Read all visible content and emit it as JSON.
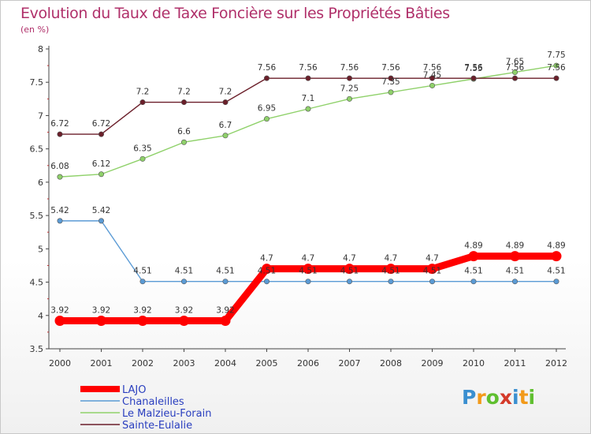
{
  "chart_data": {
    "type": "line",
    "title": "Evolution du Taux de Taxe Foncière sur les Propriétés Bâties",
    "unit_label": "(en %)",
    "x": [
      "2000",
      "2001",
      "2002",
      "2003",
      "2004",
      "2005",
      "2006",
      "2007",
      "2008",
      "2009",
      "2010",
      "2011",
      "2012"
    ],
    "ylim": [
      3.5,
      8
    ],
    "yticks": [
      "3.5",
      "4",
      "4.5",
      "5",
      "5.5",
      "6",
      "6.5",
      "7",
      "7.5",
      "8"
    ],
    "series": [
      {
        "name": "LAJO",
        "color": "#ff0000",
        "values": [
          3.92,
          3.92,
          3.92,
          3.92,
          3.92,
          4.7,
          4.7,
          4.7,
          4.7,
          4.7,
          4.89,
          4.89,
          4.89
        ],
        "labels": [
          "3.92",
          "3.92",
          "3.92",
          "3.92",
          "3.92",
          "4.7",
          "4.7",
          "4.7",
          "4.7",
          "4.7",
          "4.89",
          "4.89",
          "4.89"
        ]
      },
      {
        "name": "Chanaleilles",
        "color": "#5b9bd5",
        "values": [
          5.42,
          5.42,
          4.51,
          4.51,
          4.51,
          4.51,
          4.51,
          4.51,
          4.51,
          4.51,
          4.51,
          4.51,
          4.51
        ],
        "labels": [
          "5.42",
          "5.42",
          "4.51",
          "4.51",
          "4.51",
          "4.51",
          "4.51",
          "4.51",
          "4.51",
          "4.51",
          "4.51",
          "4.51",
          "4.51"
        ]
      },
      {
        "name": "Le Malzieu-Forain",
        "color": "#8fd16a",
        "values": [
          6.08,
          6.12,
          6.35,
          6.6,
          6.7,
          6.95,
          7.1,
          7.25,
          7.35,
          7.45,
          7.55,
          7.65,
          7.75
        ],
        "labels": [
          "6.08",
          "6.12",
          "6.35",
          "6.6",
          "6.7",
          "6.95",
          "7.1",
          "7.25",
          "7.35",
          "7.45",
          "7.55",
          "7.65",
          "7.75"
        ]
      },
      {
        "name": "Sainte-Eulalie",
        "color": "#6b1f2a",
        "values": [
          6.72,
          6.72,
          7.2,
          7.2,
          7.2,
          7.56,
          7.56,
          7.56,
          7.56,
          7.56,
          7.56,
          7.56,
          7.56
        ],
        "labels": [
          "6.72",
          "6.72",
          "7.2",
          "7.2",
          "7.2",
          "7.56",
          "7.56",
          "7.56",
          "7.56",
          "7.56",
          "7.56",
          "7.56",
          "7.56"
        ]
      }
    ]
  },
  "logo": {
    "letters": [
      "P",
      "r",
      "o",
      "x",
      "i",
      "t",
      "i"
    ]
  }
}
